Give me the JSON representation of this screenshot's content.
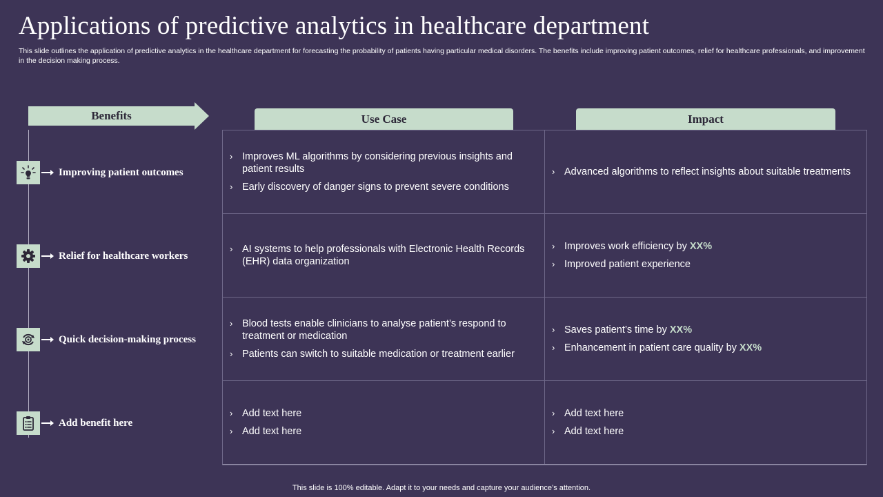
{
  "title": "Applications of predictive analytics in healthcare department",
  "subtitle": "This slide outlines the application of predictive analytics in the healthcare department for forecasting the probability of patients having particular medical disorders. The benefits include improving patient outcomes, relief for healthcare professionals, and improvement in the decision making process.",
  "headers": {
    "benefits": "Benefits",
    "use_case": "Use Case",
    "impact": "Impact"
  },
  "benefits": [
    {
      "label": "Improving  patient  outcomes",
      "icon": "brain-bulb-icon"
    },
    {
      "label": "Relief for healthcare workers",
      "icon": "gear-icon"
    },
    {
      "label": "Quick decision-making process",
      "icon": "target-cycle-icon"
    },
    {
      "label": "Add benefit here",
      "icon": "clipboard-icon"
    }
  ],
  "rows": [
    {
      "use_case": [
        "Improves ML algorithms by considering previous insights and patient results",
        "Early discovery of danger signs to prevent severe conditions"
      ],
      "impact": [
        {
          "text": "Advanced algorithms to reflect insights about suitable treatments",
          "highlight": ""
        }
      ]
    },
    {
      "use_case": [
        "AI systems to help professionals with Electronic Health Records (EHR) data organization"
      ],
      "impact": [
        {
          "text": "Improves work efficiency by ",
          "highlight": "XX%"
        },
        {
          "text": "Improved patient experience",
          "highlight": ""
        }
      ]
    },
    {
      "use_case": [
        "Blood tests enable clinicians to analyse patient’s respond to treatment or medication",
        "Patients can switch to suitable medication or treatment earlier"
      ],
      "impact": [
        {
          "text": "Saves patient’s time by ",
          "highlight": "XX%"
        },
        {
          "text": "Enhancement in patient care quality by ",
          "highlight": "XX%"
        }
      ]
    },
    {
      "use_case": [
        "Add text here",
        "Add text here"
      ],
      "impact": [
        {
          "text": "Add text here",
          "highlight": ""
        },
        {
          "text": "Add text here",
          "highlight": ""
        }
      ]
    }
  ],
  "bullet": "›",
  "footer": "This slide is 100% editable. Adapt it to your needs and capture your audience’s attention.",
  "colors": {
    "background": "#3d3456",
    "accent": "#c6dccb",
    "text": "#ffffff",
    "grid": "#6f6889"
  }
}
